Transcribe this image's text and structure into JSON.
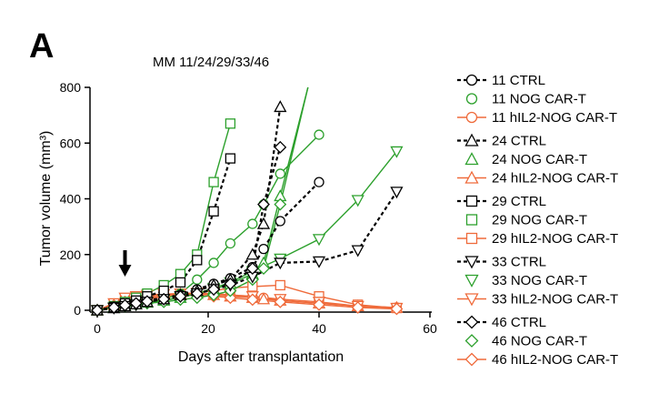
{
  "panel_letter": "A",
  "chart_data": {
    "type": "line",
    "title": "MM 11/24/29/33/46",
    "xlabel": "Days after transplantation",
    "ylabel": "Tumor volume (mm³)",
    "xlim": [
      0,
      60
    ],
    "ylim": [
      0,
      800
    ],
    "xticks": [
      0,
      20,
      40,
      60
    ],
    "yticks": [
      0,
      200,
      400,
      600,
      800
    ],
    "grid": false,
    "legend_position": "right",
    "annotation": "arrow at day 5",
    "arrow_day": 5,
    "colors": {
      "CTRL": "#000000",
      "NOG": "#2ca02c",
      "hIL2": "#ef6a3a"
    },
    "series": [
      {
        "name": "11 CTRL",
        "group": "CTRL",
        "marker": "circle",
        "x": [
          0,
          3,
          5,
          7,
          9,
          12,
          15,
          18,
          21,
          24,
          28,
          30,
          33,
          40
        ],
        "y": [
          0,
          12,
          22,
          28,
          35,
          45,
          55,
          75,
          95,
          115,
          155,
          220,
          320,
          460
        ]
      },
      {
        "name": "11 NOG CAR-T",
        "group": "NOG",
        "marker": "circle",
        "x": [
          0,
          3,
          5,
          7,
          9,
          12,
          15,
          18,
          21,
          24,
          28,
          30,
          33,
          40
        ],
        "y": [
          0,
          10,
          18,
          25,
          32,
          40,
          60,
          110,
          170,
          240,
          310,
          380,
          490,
          630
        ]
      },
      {
        "name": "11 hIL2-NOG CAR-T",
        "group": "hIL2",
        "marker": "circle",
        "x": [
          0,
          3,
          5,
          7,
          9,
          12,
          15,
          18,
          21,
          24,
          28,
          30,
          33,
          40,
          47,
          54
        ],
        "y": [
          0,
          15,
          30,
          40,
          45,
          50,
          55,
          58,
          60,
          55,
          50,
          45,
          35,
          25,
          15,
          10
        ]
      },
      {
        "name": "24 CTRL",
        "group": "CTRL",
        "marker": "triangle-up",
        "x": [
          0,
          3,
          5,
          7,
          9,
          12,
          15,
          18,
          21,
          24,
          28,
          30,
          33
        ],
        "y": [
          0,
          8,
          15,
          22,
          30,
          40,
          55,
          70,
          90,
          110,
          200,
          310,
          730
        ]
      },
      {
        "name": "24 NOG CAR-T",
        "group": "NOG",
        "marker": "triangle-up",
        "x": [
          0,
          3,
          5,
          7,
          9,
          12,
          15,
          18,
          21,
          24,
          28,
          30,
          33,
          38
        ],
        "y": [
          0,
          10,
          16,
          22,
          28,
          35,
          45,
          60,
          75,
          95,
          130,
          170,
          410,
          800
        ]
      },
      {
        "name": "24 hIL2-NOG CAR-T",
        "group": "hIL2",
        "marker": "triangle-up",
        "x": [
          0,
          3,
          5,
          7,
          9,
          12,
          15,
          18,
          21,
          24,
          28,
          30,
          33,
          40,
          47,
          54
        ],
        "y": [
          0,
          20,
          38,
          45,
          50,
          55,
          58,
          60,
          55,
          50,
          45,
          40,
          35,
          25,
          15,
          10
        ]
      },
      {
        "name": "29 CTRL",
        "group": "CTRL",
        "marker": "square",
        "x": [
          0,
          3,
          5,
          7,
          9,
          12,
          15,
          18,
          21,
          24
        ],
        "y": [
          0,
          12,
          25,
          35,
          50,
          70,
          100,
          180,
          355,
          545
        ]
      },
      {
        "name": "29 NOG CAR-T",
        "group": "NOG",
        "marker": "square",
        "x": [
          0,
          3,
          5,
          7,
          9,
          12,
          15,
          18,
          21,
          24
        ],
        "y": [
          0,
          15,
          30,
          45,
          60,
          90,
          130,
          200,
          460,
          670
        ]
      },
      {
        "name": "29 hIL2-NOG CAR-T",
        "group": "hIL2",
        "marker": "square",
        "x": [
          0,
          3,
          5,
          7,
          9,
          12,
          15,
          18,
          21,
          24,
          28,
          33,
          40,
          47,
          54
        ],
        "y": [
          0,
          20,
          40,
          45,
          50,
          55,
          58,
          62,
          70,
          80,
          85,
          90,
          50,
          20,
          8
        ]
      },
      {
        "name": "33 CTRL",
        "group": "CTRL",
        "marker": "triangle-down",
        "x": [
          0,
          3,
          5,
          7,
          9,
          12,
          15,
          18,
          21,
          24,
          28,
          33,
          40,
          47,
          54
        ],
        "y": [
          0,
          8,
          15,
          20,
          30,
          40,
          50,
          60,
          75,
          90,
          120,
          170,
          175,
          215,
          425
        ]
      },
      {
        "name": "33 NOG CAR-T",
        "group": "NOG",
        "marker": "triangle-down",
        "x": [
          0,
          3,
          5,
          7,
          9,
          12,
          15,
          18,
          21,
          24,
          28,
          33,
          40,
          47,
          54
        ],
        "y": [
          0,
          10,
          15,
          22,
          30,
          38,
          45,
          60,
          80,
          100,
          140,
          185,
          255,
          395,
          570
        ]
      },
      {
        "name": "33 hIL2-NOG CAR-T",
        "group": "hIL2",
        "marker": "triangle-down",
        "x": [
          0,
          3,
          5,
          7,
          9,
          12,
          15,
          18,
          21,
          24,
          28,
          33,
          40,
          47,
          54
        ],
        "y": [
          0,
          25,
          45,
          50,
          55,
          58,
          60,
          62,
          58,
          55,
          50,
          40,
          30,
          15,
          8
        ]
      },
      {
        "name": "46 CTRL",
        "group": "CTRL",
        "marker": "diamond",
        "x": [
          0,
          3,
          5,
          7,
          9,
          12,
          15,
          18,
          21,
          24,
          28,
          30,
          33
        ],
        "y": [
          0,
          10,
          18,
          25,
          32,
          40,
          50,
          60,
          75,
          95,
          150,
          380,
          585
        ]
      },
      {
        "name": "46 NOG CAR-T",
        "group": "NOG",
        "marker": "diamond",
        "x": [
          0,
          3,
          5,
          7,
          9,
          12,
          15,
          18,
          21,
          24,
          28,
          30,
          33,
          38
        ],
        "y": [
          0,
          10,
          15,
          20,
          25,
          30,
          38,
          45,
          55,
          70,
          110,
          150,
          380,
          800
        ]
      },
      {
        "name": "46 hIL2-NOG CAR-T",
        "group": "hIL2",
        "marker": "diamond",
        "x": [
          0,
          3,
          5,
          7,
          9,
          12,
          15,
          18,
          21,
          24,
          28,
          33,
          40,
          47,
          54
        ],
        "y": [
          0,
          18,
          30,
          38,
          42,
          48,
          52,
          55,
          50,
          45,
          38,
          30,
          20,
          10,
          5
        ]
      }
    ]
  }
}
